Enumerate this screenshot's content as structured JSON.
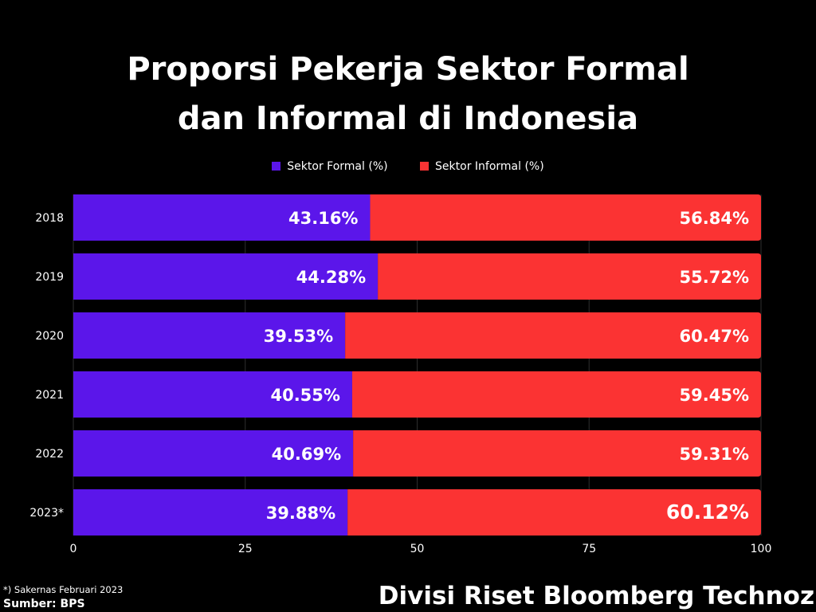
{
  "chart_data": {
    "type": "bar",
    "orientation": "horizontal",
    "stacked": true,
    "title_lines": [
      "Proporsi Pekerja Sektor Formal",
      "dan Informal di Indonesia"
    ],
    "categories": [
      "2018",
      "2019",
      "2020",
      "2021",
      "2022",
      "2023*"
    ],
    "series": [
      {
        "name": "Sektor Formal (%)",
        "color": "#5b16ea",
        "values": [
          43.16,
          44.28,
          39.53,
          40.55,
          40.69,
          39.88
        ],
        "labels": [
          "43.16%",
          "44.28%",
          "39.53%",
          "40.55%",
          "40.69%",
          "39.88%"
        ]
      },
      {
        "name": "Sektor Informal (%)",
        "color": "#fb3333",
        "values": [
          56.84,
          55.72,
          60.47,
          59.45,
          59.31,
          60.12
        ],
        "labels": [
          "56.84%",
          "55.72%",
          "60.47%",
          "59.45%",
          "59.31%",
          "60.12%"
        ]
      }
    ],
    "xlim": [
      0,
      100
    ],
    "xticks": [
      0,
      25,
      50,
      75,
      100
    ],
    "xtick_labels": [
      "0",
      "25",
      "50",
      "75",
      "100"
    ],
    "grid": true,
    "legend_position": "top-center"
  },
  "footnote": "*) Sakernas Februari 2023",
  "source": "Sumber: BPS",
  "credit": "Divisi Riset Bloomberg Technoz"
}
